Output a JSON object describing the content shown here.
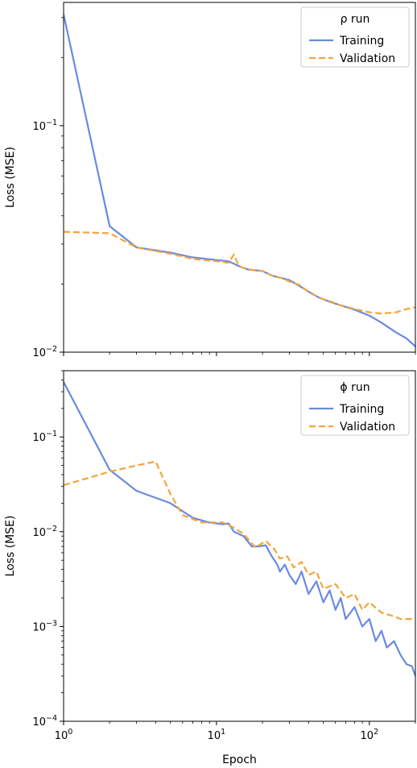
{
  "chart_data": [
    {
      "type": "line",
      "ylabel": "Loss (MSE)",
      "xlabel": "",
      "xscale": "log",
      "yscale": "log",
      "xlim": [
        1,
        200
      ],
      "ylim": [
        0.01,
        0.35
      ],
      "y_ticks": [
        {
          "mantissa": "10",
          "exp": "−1",
          "value": 0.1
        },
        {
          "mantissa": "10",
          "exp": "−2",
          "value": 0.01
        }
      ],
      "x_ticks": [],
      "legend": {
        "title": "ρ run",
        "placement": "top-right"
      },
      "grid": false,
      "series": [
        {
          "name": "Training",
          "color": "#6a8ae0",
          "style": "solid",
          "points": [
            [
              1,
              0.31
            ],
            [
              2,
              0.036
            ],
            [
              3,
              0.029
            ],
            [
              5,
              0.0275
            ],
            [
              7,
              0.0262
            ],
            [
              10,
              0.0255
            ],
            [
              12,
              0.0252
            ],
            [
              14,
              0.024
            ],
            [
              16,
              0.0232
            ],
            [
              20,
              0.0228
            ],
            [
              23,
              0.0218
            ],
            [
              27,
              0.0212
            ],
            [
              30,
              0.0208
            ],
            [
              35,
              0.0196
            ],
            [
              40,
              0.0185
            ],
            [
              47,
              0.0174
            ],
            [
              55,
              0.0167
            ],
            [
              65,
              0.0161
            ],
            [
              80,
              0.0154
            ],
            [
              100,
              0.0145
            ],
            [
              120,
              0.0135
            ],
            [
              150,
              0.0122
            ],
            [
              175,
              0.0115
            ],
            [
              200,
              0.0106
            ]
          ]
        },
        {
          "name": "Validation",
          "color": "#f5a43a",
          "style": "dashed",
          "points": [
            [
              1,
              0.034
            ],
            [
              2,
              0.0335
            ],
            [
              3,
              0.029
            ],
            [
              5,
              0.0272
            ],
            [
              7,
              0.0258
            ],
            [
              10,
              0.0252
            ],
            [
              12,
              0.0248
            ],
            [
              13,
              0.027
            ],
            [
              14,
              0.024
            ],
            [
              16,
              0.0232
            ],
            [
              20,
              0.0228
            ],
            [
              23,
              0.0218
            ],
            [
              27,
              0.0212
            ],
            [
              30,
              0.0205
            ],
            [
              35,
              0.0198
            ],
            [
              40,
              0.0184
            ],
            [
              47,
              0.0174
            ],
            [
              55,
              0.0168
            ],
            [
              65,
              0.0161
            ],
            [
              80,
              0.0155
            ],
            [
              100,
              0.015
            ],
            [
              120,
              0.0148
            ],
            [
              150,
              0.015
            ],
            [
              175,
              0.0155
            ],
            [
              200,
              0.0158
            ]
          ]
        }
      ]
    },
    {
      "type": "line",
      "ylabel": "Loss (MSE)",
      "xlabel": "Epoch",
      "xscale": "log",
      "yscale": "log",
      "xlim": [
        1,
        200
      ],
      "ylim": [
        0.0001,
        0.5
      ],
      "y_ticks": [
        {
          "mantissa": "10",
          "exp": "−1",
          "value": 0.1
        },
        {
          "mantissa": "10",
          "exp": "−2",
          "value": 0.01
        },
        {
          "mantissa": "10",
          "exp": "−3",
          "value": 0.001
        },
        {
          "mantissa": "10",
          "exp": "−4",
          "value": 0.0001
        }
      ],
      "x_ticks": [
        {
          "mantissa": "10",
          "exp": "0",
          "value": 1
        },
        {
          "mantissa": "10",
          "exp": "1",
          "value": 10
        },
        {
          "mantissa": "10",
          "exp": "2",
          "value": 100
        }
      ],
      "legend": {
        "title": "ϕ run",
        "placement": "top-right"
      },
      "grid": false,
      "series": [
        {
          "name": "Training",
          "color": "#6a8ae0",
          "style": "solid",
          "points": [
            [
              1,
              0.38
            ],
            [
              2,
              0.045
            ],
            [
              3,
              0.027
            ],
            [
              5,
              0.02
            ],
            [
              7,
              0.014
            ],
            [
              9,
              0.0125
            ],
            [
              11,
              0.012
            ],
            [
              12,
              0.0122
            ],
            [
              13,
              0.01
            ],
            [
              15,
              0.009
            ],
            [
              17,
              0.007
            ],
            [
              19,
              0.007
            ],
            [
              21,
              0.0072
            ],
            [
              23,
              0.0055
            ],
            [
              25,
              0.0045
            ],
            [
              26,
              0.0038
            ],
            [
              28,
              0.0045
            ],
            [
              30,
              0.0035
            ],
            [
              33,
              0.0028
            ],
            [
              36,
              0.0038
            ],
            [
              40,
              0.0022
            ],
            [
              45,
              0.003
            ],
            [
              50,
              0.0018
            ],
            [
              55,
              0.0024
            ],
            [
              60,
              0.0015
            ],
            [
              65,
              0.002
            ],
            [
              70,
              0.0012
            ],
            [
              80,
              0.0016
            ],
            [
              90,
              0.001
            ],
            [
              100,
              0.0012
            ],
            [
              110,
              0.0007
            ],
            [
              120,
              0.0009
            ],
            [
              130,
              0.0006
            ],
            [
              145,
              0.0007
            ],
            [
              160,
              0.0005
            ],
            [
              175,
              0.0004
            ],
            [
              190,
              0.00038
            ],
            [
              200,
              0.0003
            ]
          ]
        },
        {
          "name": "Validation",
          "color": "#f5a43a",
          "style": "dashed",
          "points": [
            [
              1,
              0.031
            ],
            [
              2,
              0.043
            ],
            [
              3,
              0.05
            ],
            [
              4,
              0.055
            ],
            [
              5,
              0.025
            ],
            [
              6,
              0.015
            ],
            [
              8,
              0.0125
            ],
            [
              11,
              0.0125
            ],
            [
              13,
              0.011
            ],
            [
              15,
              0.0095
            ],
            [
              18,
              0.0068
            ],
            [
              21,
              0.008
            ],
            [
              24,
              0.0065
            ],
            [
              26,
              0.0052
            ],
            [
              29,
              0.0055
            ],
            [
              32,
              0.0042
            ],
            [
              36,
              0.0048
            ],
            [
              40,
              0.0035
            ],
            [
              45,
              0.0038
            ],
            [
              50,
              0.0025
            ],
            [
              60,
              0.0028
            ],
            [
              70,
              0.002
            ],
            [
              80,
              0.0022
            ],
            [
              90,
              0.0015
            ],
            [
              100,
              0.0018
            ],
            [
              120,
              0.0014
            ],
            [
              140,
              0.0013
            ],
            [
              160,
              0.0012
            ],
            [
              180,
              0.0012
            ],
            [
              200,
              0.0012
            ]
          ]
        }
      ]
    }
  ]
}
